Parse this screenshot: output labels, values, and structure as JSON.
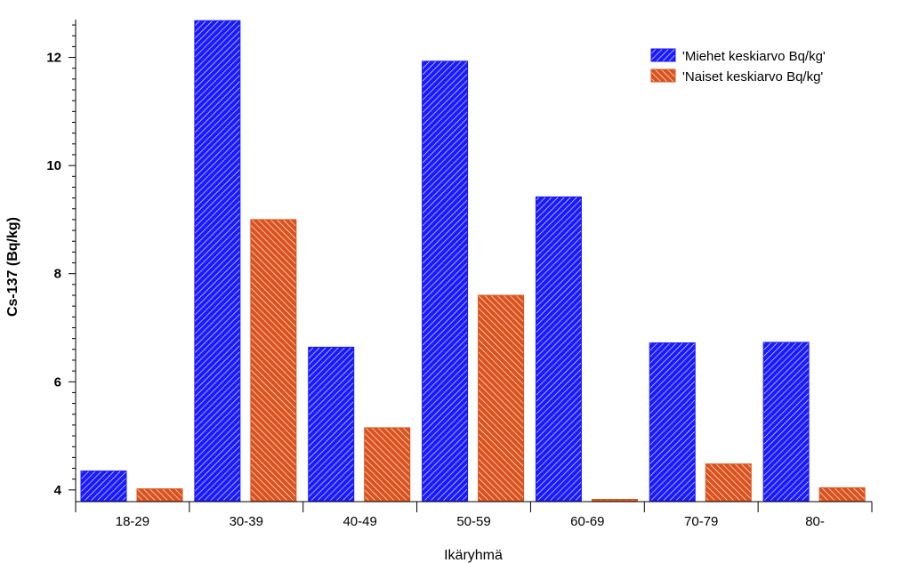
{
  "chart_data": {
    "type": "bar",
    "title": "",
    "xlabel": "Ikäryhmä",
    "ylabel": "Cs-137 (Bq/kg)",
    "ylim": [
      3.8,
      12.7
    ],
    "yticks": [
      4,
      6,
      8,
      10,
      12
    ],
    "categories": [
      "18-29",
      "30-39",
      "40-49",
      "50-59",
      "60-69",
      "70-79",
      "80-"
    ],
    "series": [
      {
        "name": "'Miehet keskiarvo Bq/kg'",
        "color": "#1a1aff",
        "values": [
          4.35,
          12.68,
          6.64,
          11.93,
          9.42,
          6.72,
          6.73
        ]
      },
      {
        "name": "'Naiset keskiarvo Bq/kg'",
        "color": "#d9531e",
        "values": [
          4.02,
          9.0,
          5.15,
          7.6,
          3.82,
          4.48,
          4.04
        ]
      }
    ],
    "legend_position": "top-right"
  }
}
